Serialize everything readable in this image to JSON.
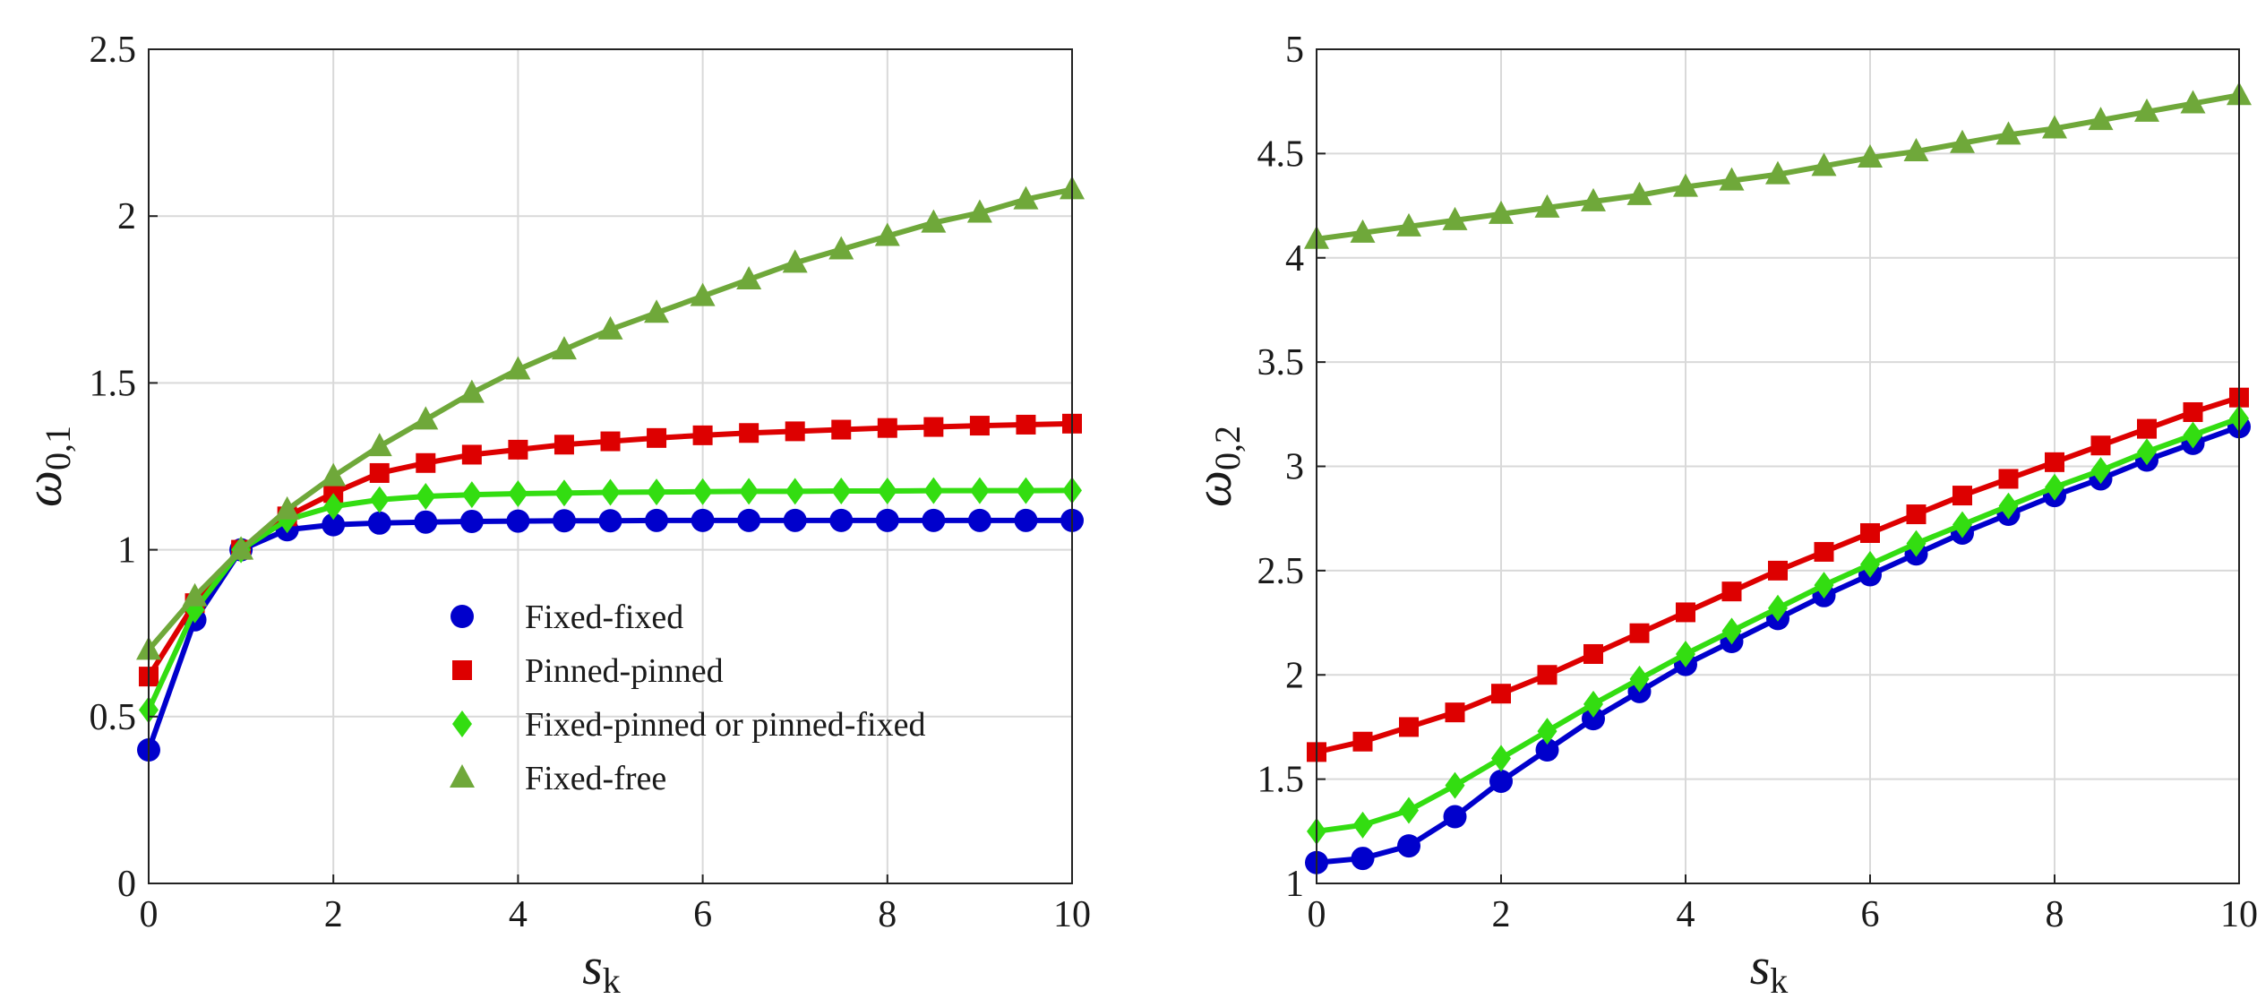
{
  "chart_data": [
    {
      "type": "line",
      "xlabel": "s",
      "xlabel_sub": "k",
      "ylabel": "ω",
      "ylabel_sub": "0,1",
      "xlim": [
        0,
        10
      ],
      "ylim": [
        0,
        2.5
      ],
      "xticks": [
        0,
        2,
        4,
        6,
        8,
        10
      ],
      "yticks": [
        0,
        0.5,
        1,
        1.5,
        2,
        2.5
      ],
      "ytick_labels": [
        "0",
        "0.5",
        "1",
        "1.5",
        "2",
        "2.5"
      ],
      "grid": true,
      "legend": "center-right",
      "x": [
        0,
        0.5,
        1,
        1.5,
        2,
        2.5,
        3,
        3.5,
        4,
        4.5,
        5,
        5.5,
        6,
        6.5,
        7,
        7.5,
        8,
        8.5,
        9,
        9.5,
        10
      ],
      "series": [
        {
          "name": "Fixed-fixed",
          "color": "#0000cc",
          "marker": "circle",
          "values": [
            0.4,
            0.79,
            1.0,
            1.06,
            1.075,
            1.08,
            1.083,
            1.085,
            1.086,
            1.087,
            1.087,
            1.088,
            1.088,
            1.088,
            1.088,
            1.088,
            1.088,
            1.088,
            1.088,
            1.088,
            1.088
          ]
        },
        {
          "name": "Pinned-pinned",
          "color": "#dd0000",
          "marker": "square",
          "values": [
            0.62,
            0.84,
            1.0,
            1.1,
            1.17,
            1.23,
            1.26,
            1.285,
            1.3,
            1.315,
            1.325,
            1.335,
            1.343,
            1.35,
            1.355,
            1.36,
            1.365,
            1.368,
            1.372,
            1.375,
            1.378
          ]
        },
        {
          "name": "Fixed-pinned or pinned-fixed",
          "color": "#33dd11",
          "marker": "diamond",
          "values": [
            0.52,
            0.82,
            1.0,
            1.09,
            1.13,
            1.15,
            1.16,
            1.165,
            1.168,
            1.17,
            1.172,
            1.173,
            1.174,
            1.175,
            1.175,
            1.176,
            1.176,
            1.177,
            1.177,
            1.177,
            1.178
          ]
        },
        {
          "name": "Fixed-free",
          "color": "#6fa83a",
          "marker": "triangle",
          "values": [
            0.7,
            0.86,
            1.0,
            1.12,
            1.22,
            1.31,
            1.39,
            1.47,
            1.54,
            1.6,
            1.66,
            1.71,
            1.76,
            1.81,
            1.86,
            1.9,
            1.94,
            1.98,
            2.01,
            2.05,
            2.08
          ]
        }
      ]
    },
    {
      "type": "line",
      "xlabel": "s",
      "xlabel_sub": "k",
      "ylabel": "ω",
      "ylabel_sub": "0,2",
      "xlim": [
        0,
        10
      ],
      "ylim": [
        1,
        5
      ],
      "xticks": [
        0,
        2,
        4,
        6,
        8,
        10
      ],
      "yticks": [
        1,
        1.5,
        2,
        2.5,
        3,
        3.5,
        4,
        4.5,
        5
      ],
      "ytick_labels": [
        "1",
        "1.5",
        "2",
        "2.5",
        "3",
        "3.5",
        "4",
        "4.5",
        "5"
      ],
      "grid": true,
      "x": [
        0,
        0.5,
        1,
        1.5,
        2,
        2.5,
        3,
        3.5,
        4,
        4.5,
        5,
        5.5,
        6,
        6.5,
        7,
        7.5,
        8,
        8.5,
        9,
        9.5,
        10
      ],
      "series": [
        {
          "name": "Fixed-fixed",
          "color": "#0000cc",
          "marker": "circle",
          "values": [
            1.1,
            1.12,
            1.18,
            1.32,
            1.49,
            1.64,
            1.79,
            1.92,
            2.05,
            2.16,
            2.27,
            2.38,
            2.48,
            2.58,
            2.68,
            2.77,
            2.86,
            2.94,
            3.03,
            3.11,
            3.19
          ]
        },
        {
          "name": "Pinned-pinned",
          "color": "#dd0000",
          "marker": "square",
          "values": [
            1.63,
            1.68,
            1.75,
            1.82,
            1.91,
            2.0,
            2.1,
            2.2,
            2.3,
            2.4,
            2.5,
            2.59,
            2.68,
            2.77,
            2.86,
            2.94,
            3.02,
            3.1,
            3.18,
            3.26,
            3.33
          ]
        },
        {
          "name": "Fixed-pinned or pinned-fixed",
          "color": "#33dd11",
          "marker": "diamond",
          "values": [
            1.25,
            1.28,
            1.35,
            1.47,
            1.6,
            1.73,
            1.86,
            1.98,
            2.1,
            2.21,
            2.32,
            2.43,
            2.53,
            2.63,
            2.72,
            2.81,
            2.9,
            2.98,
            3.07,
            3.15,
            3.23
          ]
        },
        {
          "name": "Fixed-free",
          "color": "#6fa83a",
          "marker": "triangle",
          "values": [
            4.09,
            4.12,
            4.15,
            4.18,
            4.21,
            4.24,
            4.27,
            4.3,
            4.34,
            4.37,
            4.4,
            4.44,
            4.48,
            4.51,
            4.55,
            4.59,
            4.62,
            4.66,
            4.7,
            4.74,
            4.78
          ]
        }
      ]
    }
  ]
}
